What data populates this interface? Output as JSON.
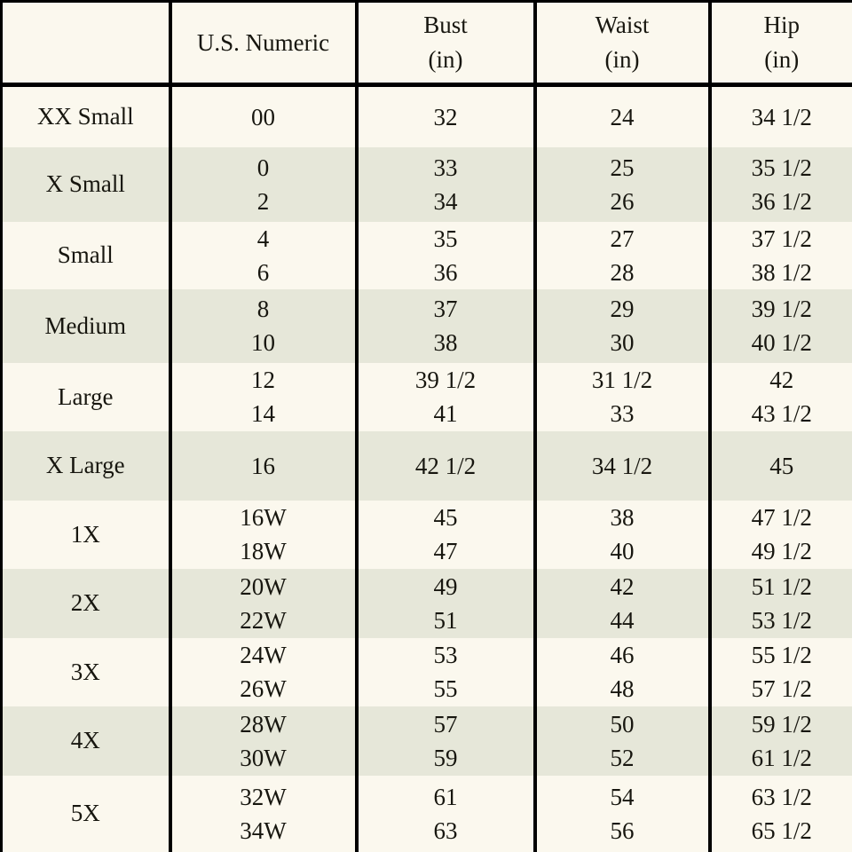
{
  "colors": {
    "background_cream": "#FBF8EE",
    "row_sage": "#E6E7D9",
    "border": "#000000",
    "text": "#17160F"
  },
  "chart_data": {
    "type": "table",
    "title": "",
    "columns": [
      {
        "title": "",
        "unit": ""
      },
      {
        "title": "U.S. Numeric",
        "unit": ""
      },
      {
        "title": "Bust",
        "unit": "(in)"
      },
      {
        "title": "Waist",
        "unit": "(in)"
      },
      {
        "title": "Hip",
        "unit": "(in)"
      }
    ],
    "rows": [
      {
        "size": "XX Small",
        "us_numeric": [
          "00"
        ],
        "bust": [
          "32"
        ],
        "waist": [
          "24"
        ],
        "hip": [
          "34 1/2"
        ]
      },
      {
        "size": "X Small",
        "us_numeric": [
          "0",
          "2"
        ],
        "bust": [
          "33",
          "34"
        ],
        "waist": [
          "25",
          "26"
        ],
        "hip": [
          "35 1/2",
          "36 1/2"
        ]
      },
      {
        "size": "Small",
        "us_numeric": [
          "4",
          "6"
        ],
        "bust": [
          "35",
          "36"
        ],
        "waist": [
          "27",
          "28"
        ],
        "hip": [
          "37 1/2",
          "38 1/2"
        ]
      },
      {
        "size": "Medium",
        "us_numeric": [
          "8",
          "10"
        ],
        "bust": [
          "37",
          "38"
        ],
        "waist": [
          "29",
          "30"
        ],
        "hip": [
          "39 1/2",
          "40 1/2"
        ]
      },
      {
        "size": "Large",
        "us_numeric": [
          "12",
          "14"
        ],
        "bust": [
          "39 1/2",
          "41"
        ],
        "waist": [
          "31 1/2",
          "33"
        ],
        "hip": [
          "42",
          "43 1/2"
        ]
      },
      {
        "size": "X Large",
        "us_numeric": [
          "16"
        ],
        "bust": [
          "42 1/2"
        ],
        "waist": [
          "34 1/2"
        ],
        "hip": [
          "45"
        ]
      },
      {
        "size": "1X",
        "us_numeric": [
          "16W",
          "18W"
        ],
        "bust": [
          "45",
          "47"
        ],
        "waist": [
          "38",
          "40"
        ],
        "hip": [
          "47 1/2",
          "49 1/2"
        ]
      },
      {
        "size": "2X",
        "us_numeric": [
          "20W",
          "22W"
        ],
        "bust": [
          "49",
          "51"
        ],
        "waist": [
          "42",
          "44"
        ],
        "hip": [
          "51 1/2",
          "53 1/2"
        ]
      },
      {
        "size": "3X",
        "us_numeric": [
          "24W",
          "26W"
        ],
        "bust": [
          "53",
          "55"
        ],
        "waist": [
          "46",
          "48"
        ],
        "hip": [
          "55 1/2",
          "57 1/2"
        ]
      },
      {
        "size": "4X",
        "us_numeric": [
          "28W",
          "30W"
        ],
        "bust": [
          "57",
          "59"
        ],
        "waist": [
          "50",
          "52"
        ],
        "hip": [
          "59 1/2",
          "61 1/2"
        ]
      },
      {
        "size": "5X",
        "us_numeric": [
          "32W",
          "34W"
        ],
        "bust": [
          "61",
          "63"
        ],
        "waist": [
          "54",
          "56"
        ],
        "hip": [
          "63 1/2",
          "65 1/2"
        ]
      }
    ]
  }
}
